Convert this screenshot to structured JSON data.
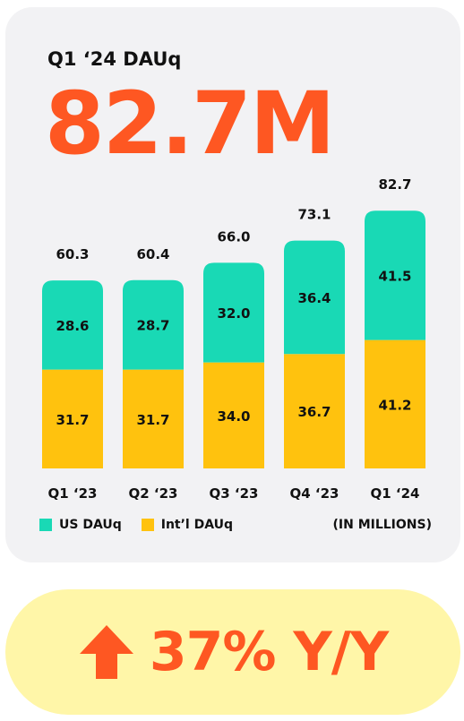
{
  "header": {
    "subtitle": "Q1 ‘24 DAUq",
    "headline": "82.7M"
  },
  "chart_data": {
    "type": "bar",
    "stacked": true,
    "categories": [
      "Q1 ‘23",
      "Q2 ‘23",
      "Q3 ‘23",
      "Q4 ‘23",
      "Q1 ‘24"
    ],
    "totals": [
      "60.3",
      "60.4",
      "66.0",
      "73.1",
      "82.7"
    ],
    "series": [
      {
        "name": "Int’l DAUq",
        "color": "#ffc20e",
        "values": [
          31.7,
          31.7,
          34.0,
          36.7,
          41.2
        ]
      },
      {
        "name": "US DAUq",
        "color": "#19d9b5",
        "values": [
          28.6,
          28.7,
          32.0,
          36.4,
          41.5
        ]
      }
    ],
    "units_note": "(IN MILLIONS)",
    "legend_position": "bottom-left",
    "grid": false
  },
  "growth": {
    "text": "37% Y/Y",
    "direction": "up",
    "icon": "arrow-up-icon",
    "color": "#fe5722"
  }
}
